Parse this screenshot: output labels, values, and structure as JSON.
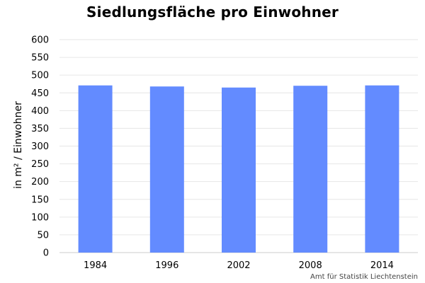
{
  "chart_data": {
    "type": "bar",
    "title": "Siedlungsfläche pro Einwohner",
    "xlabel": "",
    "ylabel": "in m² / Einwohner",
    "categories": [
      "1984",
      "1996",
      "2002",
      "2008",
      "2014"
    ],
    "values": [
      471,
      468,
      465,
      470,
      471
    ],
    "ylim": [
      0,
      600
    ],
    "yticks": [
      0,
      50,
      100,
      150,
      200,
      250,
      300,
      350,
      400,
      450,
      500,
      550,
      600
    ],
    "grid": true,
    "legend": "none",
    "bar_color": "#638bff",
    "grid_color": "#e6e6e6"
  },
  "source_note": "Amt für Statistik Liechtenstein"
}
